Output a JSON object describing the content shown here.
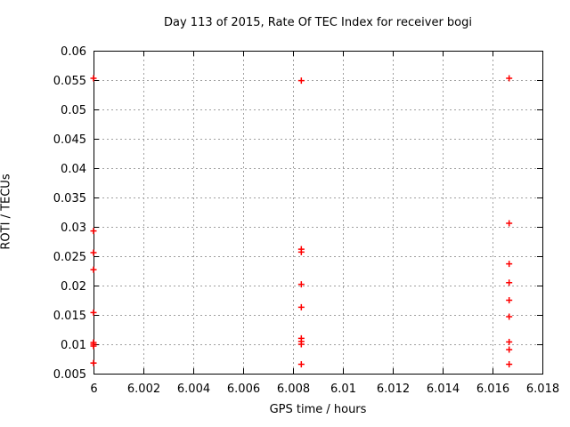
{
  "chart_data": {
    "type": "scatter",
    "title": "Day 113 of 2015, Rate Of TEC Index for receiver bogi",
    "xlabel": "GPS time / hours",
    "ylabel": "ROTI / TECUs",
    "xlim": [
      6,
      6.018
    ],
    "ylim": [
      0.005,
      0.06
    ],
    "xticks": [
      6,
      6.002,
      6.004,
      6.006,
      6.008,
      6.01,
      6.012,
      6.014,
      6.016,
      6.018
    ],
    "xtick_labels": [
      "6",
      "6.002",
      "6.004",
      "6.006",
      "6.008",
      "6.01",
      "6.012",
      "6.014",
      "6.016",
      "6.018"
    ],
    "yticks": [
      0.005,
      0.01,
      0.015,
      0.02,
      0.025,
      0.03,
      0.035,
      0.04,
      0.045,
      0.05,
      0.055,
      0.06
    ],
    "ytick_labels": [
      "0.005",
      "0.01",
      "0.015",
      "0.02",
      "0.025",
      "0.03",
      "0.035",
      "0.04",
      "0.045",
      "0.05",
      "0.055",
      "0.06"
    ],
    "grid": true,
    "legend_position": "none",
    "marker_shape": "plus",
    "marker_color": "#ff0000",
    "grid_color": "#a0a0a0",
    "axis_color": "#000000",
    "series": [
      {
        "name": "ROTI",
        "points": [
          [
            6.0,
            0.0553
          ],
          [
            6.0,
            0.0293
          ],
          [
            6.0,
            0.0256
          ],
          [
            6.0,
            0.0227
          ],
          [
            6.0,
            0.0154
          ],
          [
            6.0,
            0.0103
          ],
          [
            6.0,
            0.01
          ],
          [
            6.0,
            0.0097
          ],
          [
            6.0,
            0.0068
          ],
          [
            6.008333,
            0.0549
          ],
          [
            6.008333,
            0.0262
          ],
          [
            6.008333,
            0.0257
          ],
          [
            6.008333,
            0.0202
          ],
          [
            6.008333,
            0.0163
          ],
          [
            6.008333,
            0.011
          ],
          [
            6.008333,
            0.0105
          ],
          [
            6.008333,
            0.01
          ],
          [
            6.008333,
            0.0066
          ],
          [
            6.016667,
            0.0553
          ],
          [
            6.016667,
            0.0306
          ],
          [
            6.016667,
            0.0237
          ],
          [
            6.016667,
            0.0205
          ],
          [
            6.016667,
            0.0175
          ],
          [
            6.016667,
            0.0147
          ],
          [
            6.016667,
            0.0104
          ],
          [
            6.016667,
            0.0091
          ],
          [
            6.016667,
            0.0066
          ]
        ]
      }
    ]
  }
}
